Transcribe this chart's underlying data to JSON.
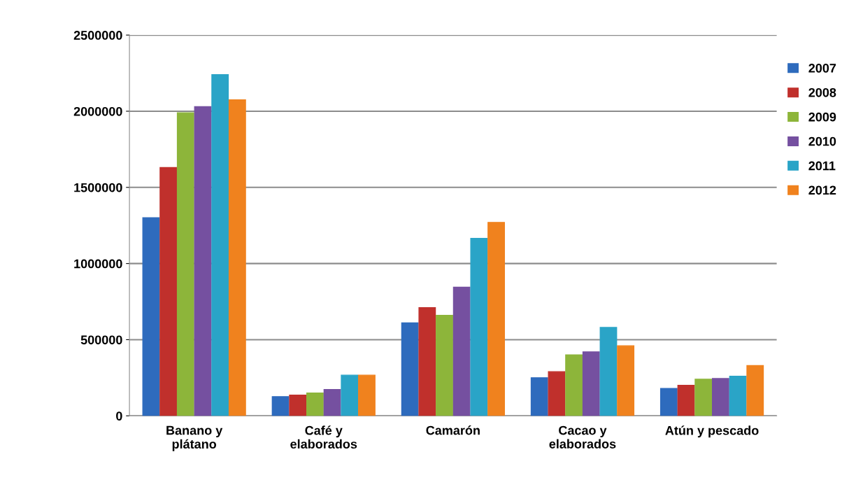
{
  "chart_data": {
    "type": "bar",
    "categories": [
      "Banano y\nplátano",
      "Café y\nelaborados",
      "Camarón",
      "Cacao y\nelaborados",
      "Atún y pescado"
    ],
    "series": [
      {
        "name": "2007",
        "color": "#2e6bbd",
        "values": [
          1300000,
          126000,
          610000,
          250000,
          180000
        ]
      },
      {
        "name": "2008",
        "color": "#c0302c",
        "values": [
          1630000,
          136000,
          710000,
          290000,
          200000
        ]
      },
      {
        "name": "2009",
        "color": "#8db53a",
        "values": [
          1990000,
          150000,
          660000,
          400000,
          240000
        ]
      },
      {
        "name": "2010",
        "color": "#7550a0",
        "values": [
          2030000,
          173000,
          845000,
          420000,
          245000
        ]
      },
      {
        "name": "2011",
        "color": "#2aa4c7",
        "values": [
          2240000,
          267000,
          1165000,
          580000,
          260000
        ]
      },
      {
        "name": "2012",
        "color": "#f0821e",
        "values": [
          2075000,
          267000,
          1270000,
          460000,
          330000
        ]
      }
    ],
    "ylim": [
      0,
      2500000
    ],
    "yticks": [
      0,
      500000,
      1000000,
      1500000,
      2000000,
      2500000
    ],
    "grid": "y",
    "legend": "right"
  }
}
